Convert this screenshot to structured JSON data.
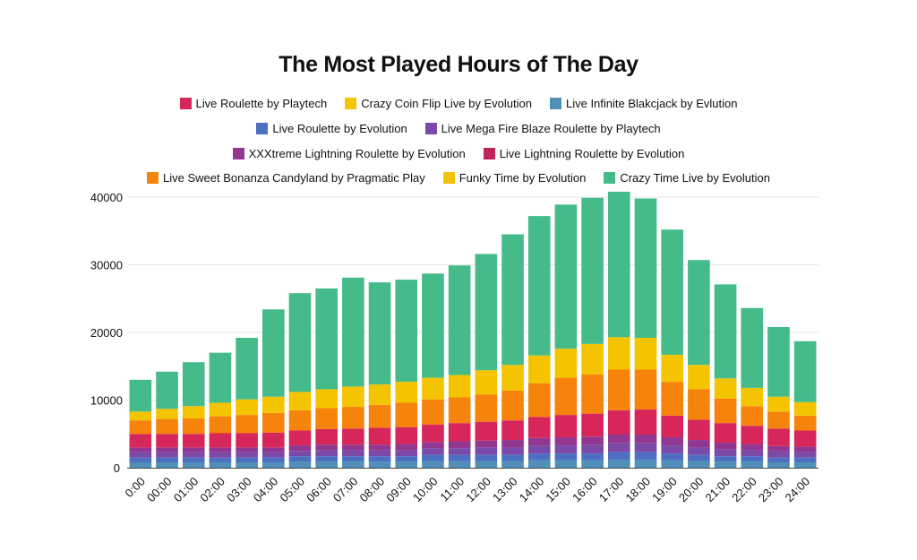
{
  "chart_data": {
    "type": "bar",
    "stacked": true,
    "title": "The Most Played Hours of The Day",
    "xlabel": "",
    "ylabel": "",
    "ylim": [
      0,
      40000
    ],
    "yticks": [
      {
        "value": 0,
        "label": "0"
      },
      {
        "value": 10000,
        "label": "10000"
      },
      {
        "value": 20000,
        "label": "20000"
      },
      {
        "value": 30000,
        "label": "30000"
      },
      {
        "value": 40000,
        "label": "40000"
      }
    ],
    "grid": true,
    "legend_position": "top",
    "categories": [
      "0:00",
      "00:00",
      "01:00",
      "02:00",
      "03:00",
      "04:00",
      "05:00",
      "06:00",
      "07:00",
      "08:00",
      "09:00",
      "10:00",
      "11:00",
      "12:00",
      "13:00",
      "14:00",
      "15:00",
      "16:00",
      "17:00",
      "18:00",
      "19:00",
      "20:00",
      "21:00",
      "22:00",
      "23:00",
      "24:00"
    ],
    "stack_order": [
      2,
      3,
      4,
      5,
      6,
      0,
      7,
      1,
      8,
      9
    ],
    "series": [
      {
        "name": "Live Roulette by Playtech",
        "color": "#d7265a",
        "values": [
          2000,
          2000,
          2000,
          2100,
          2100,
          2200,
          2200,
          2300,
          2400,
          2500,
          2500,
          2600,
          2700,
          2800,
          2900,
          3100,
          3300,
          3400,
          3600,
          3700,
          3200,
          3000,
          2900,
          2700,
          2600,
          2400
        ]
      },
      {
        "name": "Crazy Coin Flip Live by Evolution",
        "color": "#f5c400",
        "values": [
          1300,
          1500,
          1800,
          2000,
          2300,
          2400,
          2700,
          2800,
          3000,
          3000,
          3100,
          3200,
          3300,
          3600,
          3800,
          4100,
          4300,
          4500,
          4800,
          4700,
          4000,
          3600,
          3000,
          2700,
          2200,
          2000
        ]
      },
      {
        "name": "Live Infinite Blakcjack by Evlution",
        "color": "#4f8fb8",
        "values": [
          800,
          800,
          800,
          800,
          800,
          800,
          900,
          900,
          900,
          900,
          900,
          1000,
          1000,
          1000,
          1000,
          1100,
          1100,
          1100,
          1200,
          1200,
          1100,
          1000,
          900,
          900,
          800,
          800
        ]
      },
      {
        "name": "Live Roulette by Evolution",
        "color": "#4d6fc1",
        "values": [
          700,
          700,
          700,
          700,
          700,
          700,
          800,
          800,
          800,
          800,
          800,
          900,
          900,
          900,
          900,
          1000,
          1000,
          1000,
          1100,
          1100,
          1000,
          900,
          800,
          800,
          700,
          700
        ]
      },
      {
        "name": "Live Mega Fire Blaze Roulette by Playtech",
        "color": "#7b4aa8",
        "values": [
          800,
          800,
          800,
          800,
          800,
          800,
          800,
          900,
          900,
          900,
          900,
          1000,
          1000,
          1100,
          1100,
          1200,
          1200,
          1300,
          1300,
          1300,
          1200,
          1100,
          1000,
          900,
          900,
          800
        ]
      },
      {
        "name": "XXXtreme Lightning Roulette by Evolution",
        "color": "#92378f",
        "values": [
          700,
          700,
          700,
          700,
          700,
          700,
          800,
          800,
          800,
          800,
          900,
          900,
          1000,
          1000,
          1100,
          1100,
          1200,
          1200,
          1300,
          1300,
          1200,
          1100,
          1000,
          900,
          800,
          800
        ]
      },
      {
        "name": "Live Lightning Roulette by Evolution",
        "color": "#c0245c",
        "values": [
          0,
          0,
          0,
          0,
          0,
          0,
          0,
          0,
          0,
          0,
          0,
          0,
          0,
          0,
          0,
          0,
          0,
          0,
          0,
          0,
          0,
          0,
          0,
          0,
          0,
          0
        ]
      },
      {
        "name": "Live Sweet Bonanza Candyland by Pragmatic Play",
        "color": "#f5830c",
        "values": [
          2000,
          2200,
          2300,
          2500,
          2700,
          2900,
          3000,
          3100,
          3200,
          3400,
          3600,
          3700,
          3800,
          4000,
          4400,
          5000,
          5500,
          5800,
          6000,
          5900,
          5000,
          4500,
          3600,
          2900,
          2500,
          2200
        ]
      },
      {
        "name": "Funky Time by Evolution",
        "color": "#f3c20b",
        "values": [
          0,
          0,
          0,
          0,
          0,
          0,
          0,
          0,
          0,
          0,
          0,
          0,
          0,
          0,
          0,
          0,
          0,
          0,
          0,
          0,
          0,
          0,
          0,
          0,
          0,
          0
        ]
      },
      {
        "name": "Crazy Time Live by Evolution",
        "color": "#45bb8a",
        "values": [
          4700,
          5500,
          6500,
          7400,
          9100,
          12900,
          14600,
          14900,
          16100,
          15100,
          15100,
          15400,
          16200,
          17200,
          19300,
          20600,
          21300,
          21600,
          21500,
          20600,
          18500,
          15500,
          13900,
          11800,
          10300,
          9000
        ]
      }
    ]
  },
  "legend": {
    "rows": [
      [
        {
          "label": "Live Roulette by Playtech",
          "color": "#d7265a"
        },
        {
          "label": "Crazy Coin Flip Live by Evolution",
          "color": "#f5c400"
        },
        {
          "label": "Live Infinite Blakcjack by Evlution",
          "color": "#4f8fb8"
        }
      ],
      [
        {
          "label": "Live Roulette by Evolution",
          "color": "#4d6fc1"
        },
        {
          "label": "Live Mega Fire Blaze Roulette by Playtech",
          "color": "#7b4aa8"
        }
      ],
      [
        {
          "label": "XXXtreme Lightning Roulette by Evolution",
          "color": "#92378f"
        },
        {
          "label": "Live Lightning Roulette by Evolution",
          "color": "#c0245c"
        }
      ],
      [
        {
          "label": "Live Sweet Bonanza Candyland by Pragmatic Play",
          "color": "#f5830c"
        },
        {
          "label": "Funky Time by Evolution",
          "color": "#f3c20b"
        },
        {
          "label": "Crazy Time Live by Evolution",
          "color": "#45bb8a"
        }
      ]
    ]
  }
}
